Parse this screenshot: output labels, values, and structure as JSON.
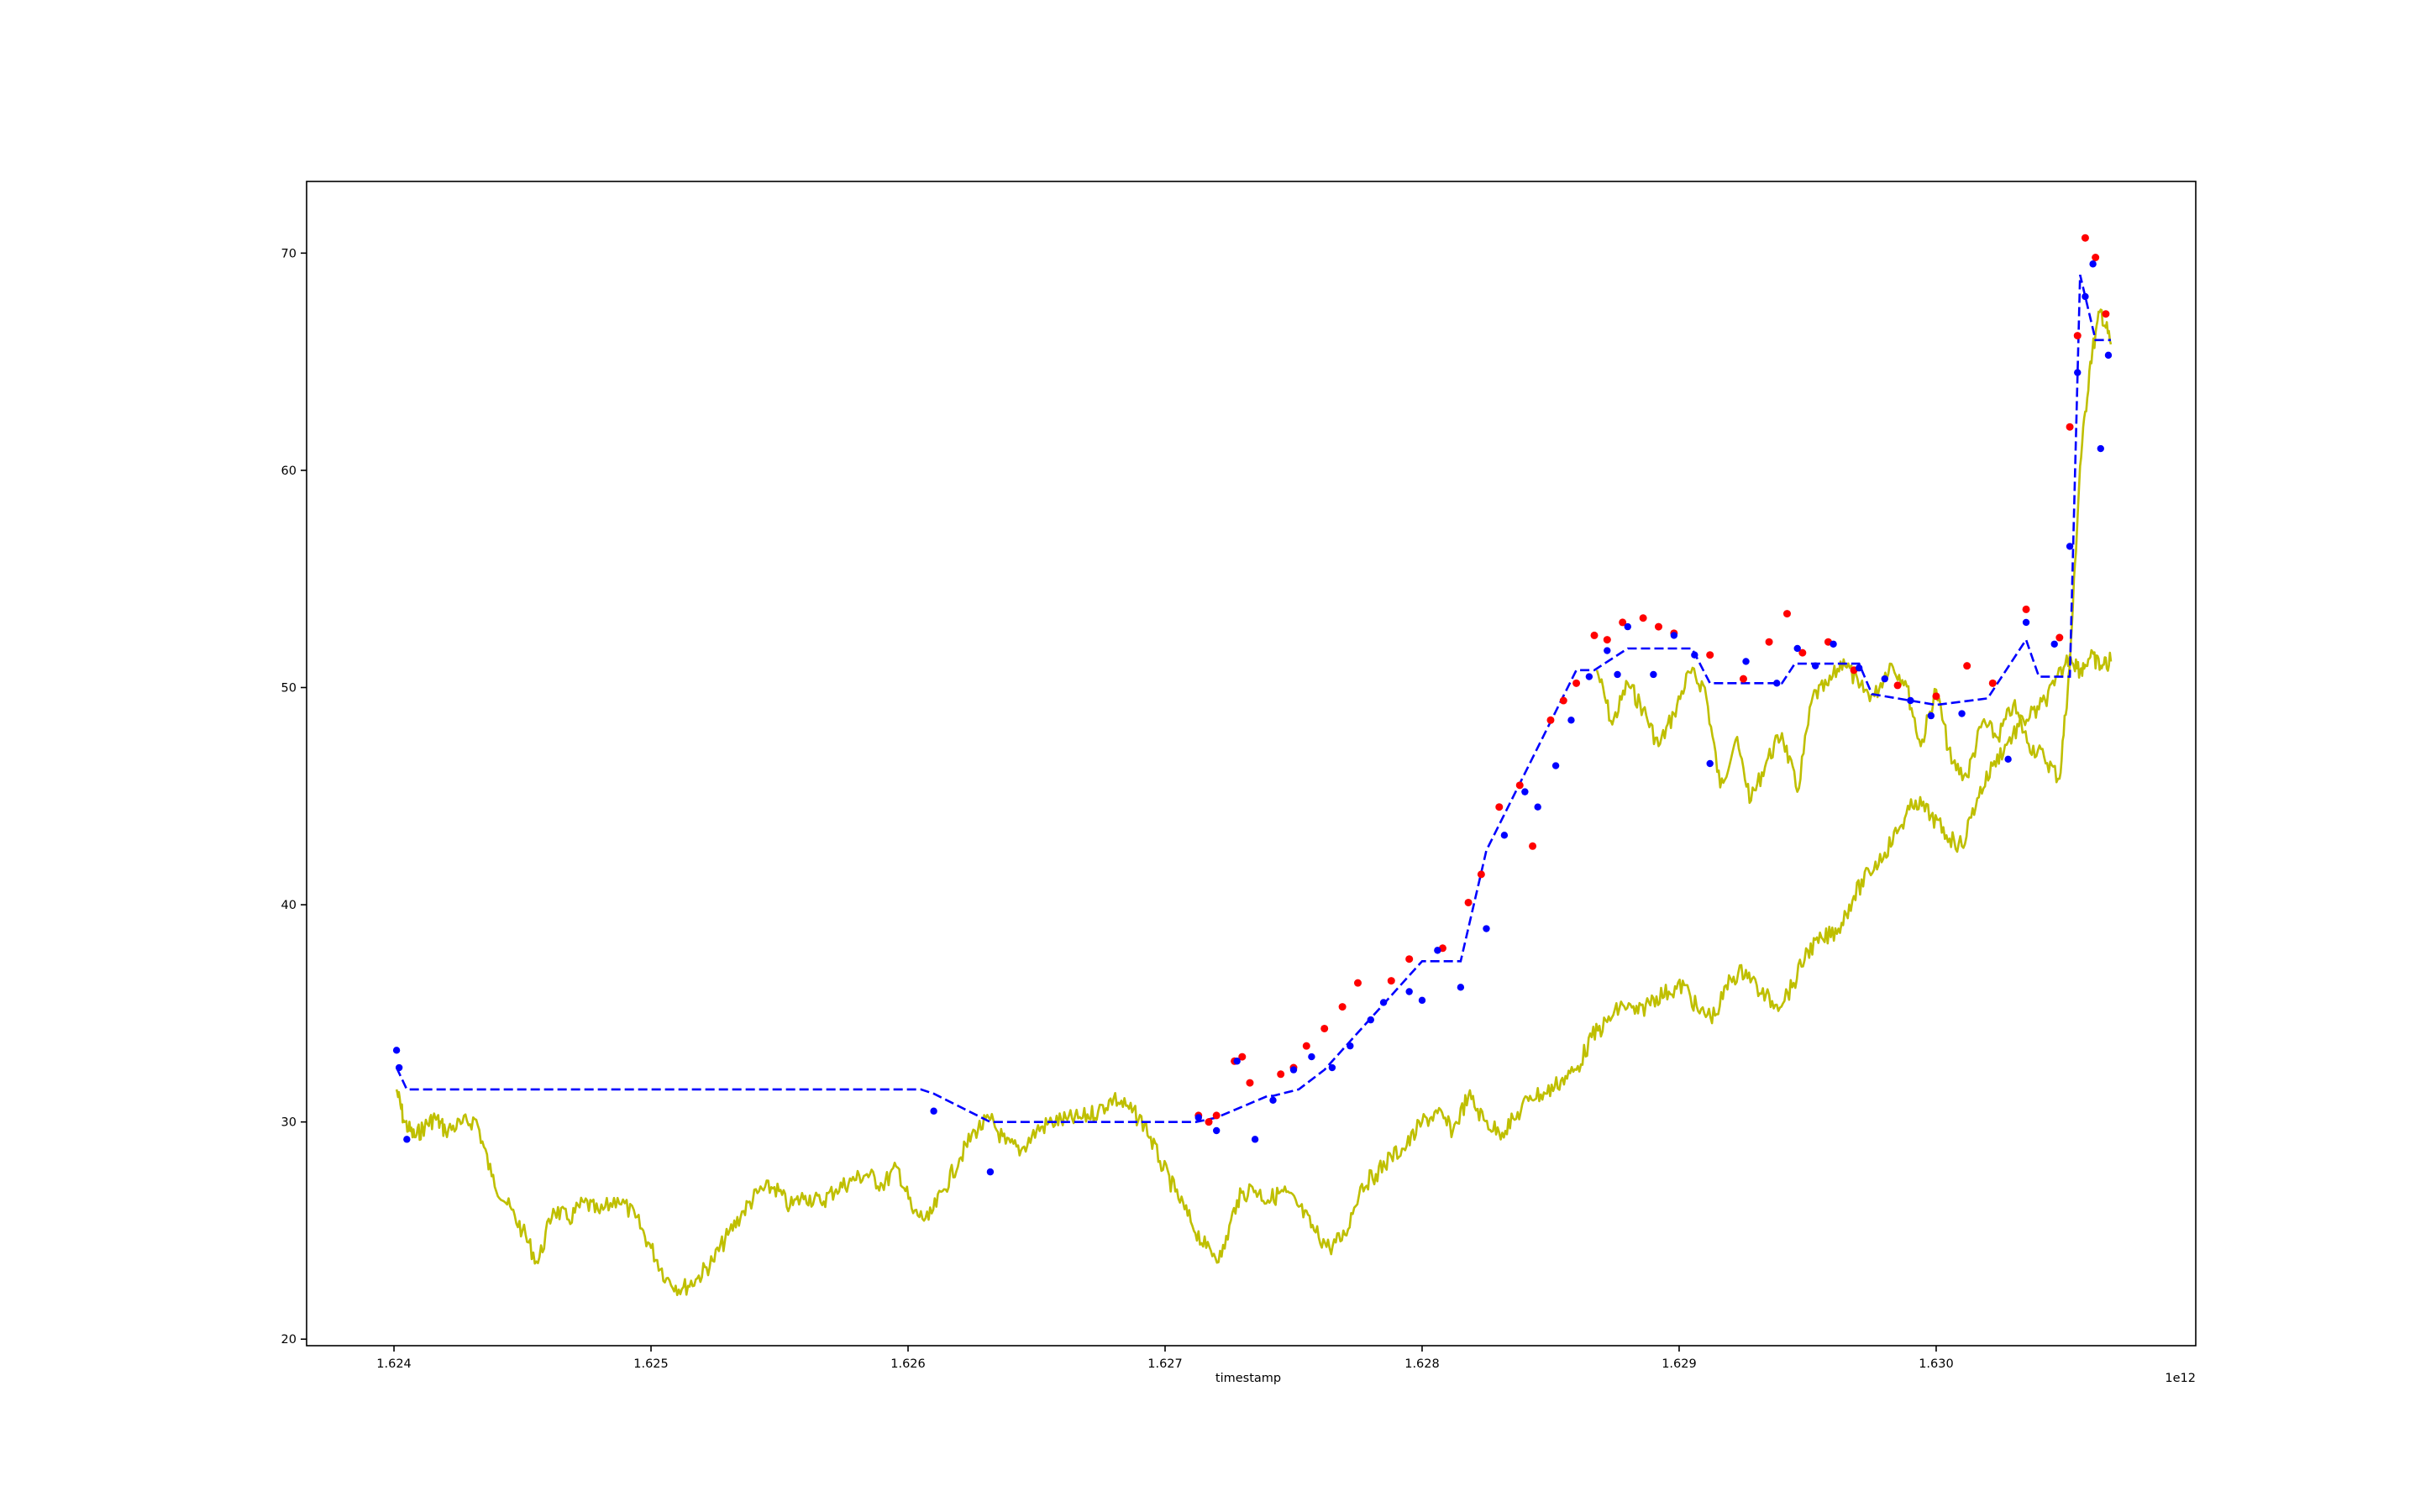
{
  "chart_data": {
    "type": "line",
    "title": "",
    "xlabel": "timestamp",
    "ylabel": "",
    "x_offset_label": "1e12",
    "xlim": [
      1.62366,
      1.63101
    ],
    "ylim": [
      19.7,
      73.3
    ],
    "grid": false,
    "legend": "none",
    "x_ticks": [
      {
        "value": 1.624,
        "label": "1.624"
      },
      {
        "value": 1.625,
        "label": "1.625"
      },
      {
        "value": 1.626,
        "label": "1.626"
      },
      {
        "value": 1.627,
        "label": "1.627"
      },
      {
        "value": 1.628,
        "label": "1.628"
      },
      {
        "value": 1.629,
        "label": "1.629"
      },
      {
        "value": 1.63,
        "label": "1.630"
      }
    ],
    "y_ticks": [
      {
        "value": 20,
        "label": "20"
      },
      {
        "value": 30,
        "label": "30"
      },
      {
        "value": 40,
        "label": "40"
      },
      {
        "value": 50,
        "label": "50"
      },
      {
        "value": 60,
        "label": "60"
      },
      {
        "value": 70,
        "label": "70"
      }
    ],
    "series": [
      {
        "style": "solid-line",
        "color": "#bfbf00",
        "x": [
          1.62401,
          1.62404,
          1.62408,
          1.62412,
          1.62416,
          1.6242,
          1.62426,
          1.62432,
          1.62438,
          1.62444,
          1.6245,
          1.62456,
          1.62462,
          1.62468,
          1.62474,
          1.6248,
          1.62487,
          1.62494,
          1.625,
          1.62506,
          1.62512,
          1.62518,
          1.62524,
          1.6253,
          1.62536,
          1.62542,
          1.62548,
          1.62554,
          1.6256,
          1.62566,
          1.62572,
          1.62578,
          1.62584,
          1.6259,
          1.62596,
          1.62602,
          1.62608,
          1.62614,
          1.6262,
          1.62626,
          1.62632,
          1.62638,
          1.62644,
          1.6265,
          1.62656,
          1.62662,
          1.62668,
          1.62674,
          1.6268,
          1.62686,
          1.62692,
          1.62698,
          1.62704,
          1.6271,
          1.62716,
          1.62722,
          1.62728,
          1.62734,
          1.6274,
          1.62746,
          1.62752,
          1.62758,
          1.62764,
          1.6277,
          1.62776,
          1.62782,
          1.62788,
          1.62794,
          1.628,
          1.62806,
          1.62812,
          1.62818,
          1.62824,
          1.6283,
          1.62836,
          1.62842,
          1.62848,
          1.62854,
          1.6286,
          1.62866,
          1.62872,
          1.62878,
          1.62884,
          1.6289,
          1.62896,
          1.62902,
          1.62908,
          1.62914,
          1.6292,
          1.62926,
          1.62932,
          1.62938,
          1.62944,
          1.6295,
          1.62956,
          1.62962,
          1.62968,
          1.62974,
          1.6298,
          1.62986,
          1.62992,
          1.62998,
          1.63004,
          1.6301,
          1.63016,
          1.63022,
          1.63028,
          1.63034,
          1.6304,
          1.63046,
          1.63052,
          1.63056,
          1.6306,
          1.63064,
          1.63068
        ],
        "y": [
          31.5,
          30.0,
          29.3,
          29.8,
          30.2,
          29.6,
          29.9,
          30.1,
          27.5,
          26.2,
          25.0,
          23.5,
          26.0,
          25.5,
          26.3,
          25.8,
          26.5,
          25.6,
          24.2,
          22.8,
          22.3,
          22.8,
          23.6,
          24.8,
          25.9,
          26.8,
          27.0,
          26.1,
          26.6,
          26.3,
          26.9,
          27.3,
          27.6,
          27.1,
          27.9,
          25.8,
          25.5,
          26.9,
          28.3,
          29.6,
          30.1,
          29.0,
          28.7,
          29.6,
          30.0,
          30.1,
          30.2,
          30.5,
          31.1,
          30.6,
          29.9,
          28.2,
          26.8,
          25.4,
          24.2,
          23.8,
          26.4,
          27.0,
          26.4,
          26.8,
          26.1,
          25.0,
          24.2,
          24.8,
          27.0,
          27.6,
          28.4,
          28.9,
          30.0,
          30.4,
          29.6,
          31.2,
          30.1,
          29.5,
          30.1,
          31.2,
          31.3,
          31.9,
          32.4,
          33.9,
          34.6,
          35.4,
          35.0,
          35.7,
          36.0,
          36.3,
          35.0,
          34.9,
          36.6,
          37.0,
          35.9,
          35.4,
          36.2,
          37.9,
          38.4,
          38.9,
          40.4,
          41.5,
          42.4,
          43.6,
          44.8,
          44.1,
          43.2,
          42.7,
          44.9,
          46.4,
          47.5,
          48.5,
          49.0,
          50.1,
          51.5,
          50.8,
          51.4,
          51.0,
          51.2
        ]
      },
      {
        "style": "solid-line-tail",
        "color": "#bfbf00",
        "x": [
          1.62868,
          1.62874,
          1.6288,
          1.62886,
          1.62892,
          1.62898,
          1.62904,
          1.6291,
          1.62916,
          1.62922,
          1.62928,
          1.62934,
          1.6294,
          1.62946,
          1.62952,
          1.62958,
          1.62964,
          1.6297,
          1.62976,
          1.62982,
          1.62988,
          1.62994,
          1.63,
          1.63006,
          1.63012,
          1.63018,
          1.63024,
          1.6303,
          1.63036,
          1.63042,
          1.63048,
          1.63052,
          1.63056,
          1.6306,
          1.63064,
          1.63068
        ],
        "y": [
          50.8,
          48.3,
          50.2,
          49.0,
          47.3,
          48.8,
          50.7,
          50.0,
          45.4,
          47.6,
          44.8,
          46.6,
          47.9,
          45.2,
          49.6,
          50.1,
          51.3,
          50.0,
          49.6,
          51.1,
          50.3,
          47.3,
          49.9,
          46.5,
          45.9,
          48.4,
          47.7,
          49.2,
          47.4,
          46.8,
          45.8,
          51.0,
          60.2,
          65.0,
          67.4,
          65.8
        ]
      },
      {
        "style": "dashed-line",
        "color": "#0000ff",
        "x": [
          1.62401,
          1.62405,
          1.62605,
          1.6261,
          1.62632,
          1.62712,
          1.6272,
          1.6274,
          1.62742,
          1.62752,
          1.62762,
          1.628,
          1.62802,
          1.62815,
          1.62825,
          1.6286,
          1.62867,
          1.6288,
          1.62885,
          1.62905,
          1.62912,
          1.6294,
          1.62945,
          1.6297,
          1.62975,
          1.63,
          1.6302,
          1.63035,
          1.6304,
          1.63052,
          1.63056,
          1.63062,
          1.63064,
          1.63068
        ],
        "y": [
          32.5,
          31.5,
          31.5,
          31.3,
          30.0,
          30.0,
          30.2,
          31.2,
          31.2,
          31.5,
          32.4,
          37.4,
          37.4,
          37.4,
          42.5,
          50.8,
          50.8,
          51.8,
          51.8,
          51.8,
          50.2,
          50.2,
          51.1,
          51.1,
          49.7,
          49.2,
          49.5,
          52.2,
          50.5,
          50.5,
          69.0,
          66.0,
          66.0,
          66.0
        ]
      },
      {
        "style": "red-markers",
        "color": "#ff0000",
        "x": [
          1.62713,
          1.62717,
          1.6272,
          1.62727,
          1.6273,
          1.62733,
          1.62745,
          1.6275,
          1.62755,
          1.62762,
          1.62769,
          1.62775,
          1.62788,
          1.62795,
          1.62808,
          1.62818,
          1.62823,
          1.6283,
          1.62838,
          1.62843,
          1.6285,
          1.62855,
          1.6286,
          1.62867,
          1.62872,
          1.62878,
          1.62886,
          1.62892,
          1.62898,
          1.62912,
          1.62925,
          1.62935,
          1.62942,
          1.62948,
          1.62958,
          1.62968,
          1.62985,
          1.63,
          1.63012,
          1.63022,
          1.63035,
          1.63048,
          1.63052,
          1.63055,
          1.63058,
          1.63062,
          1.63066
        ],
        "y": [
          30.3,
          30.0,
          30.3,
          32.8,
          33.0,
          31.8,
          32.2,
          32.5,
          33.5,
          34.3,
          35.3,
          36.4,
          36.5,
          37.5,
          38.0,
          40.1,
          41.4,
          44.5,
          45.5,
          42.7,
          48.5,
          49.4,
          50.2,
          52.4,
          52.2,
          53.0,
          53.2,
          52.8,
          52.5,
          51.5,
          50.4,
          52.1,
          53.4,
          51.6,
          52.1,
          50.8,
          50.1,
          49.6,
          51.0,
          50.2,
          53.6,
          52.3,
          62.0,
          66.2,
          70.7,
          69.8,
          67.2
        ]
      },
      {
        "style": "blue-markers",
        "color": "#0000ff",
        "x": [
          1.62401,
          1.62402,
          1.62405,
          1.6261,
          1.62632,
          1.62713,
          1.6272,
          1.62728,
          1.62735,
          1.62742,
          1.6275,
          1.62757,
          1.62765,
          1.62772,
          1.6278,
          1.62785,
          1.62795,
          1.628,
          1.62806,
          1.62815,
          1.62825,
          1.62832,
          1.6284,
          1.62845,
          1.62852,
          1.62858,
          1.62865,
          1.62872,
          1.62876,
          1.6288,
          1.6289,
          1.62898,
          1.62906,
          1.62912,
          1.62926,
          1.62938,
          1.62946,
          1.62953,
          1.6296,
          1.6297,
          1.6298,
          1.6299,
          1.62998,
          1.6301,
          1.63028,
          1.63035,
          1.63046,
          1.63052,
          1.63055,
          1.63058,
          1.63061,
          1.63064,
          1.63067
        ],
        "y": [
          33.3,
          32.5,
          29.2,
          30.5,
          27.7,
          30.2,
          29.6,
          32.8,
          29.2,
          31.0,
          32.4,
          33.0,
          32.5,
          33.5,
          34.7,
          35.5,
          36.0,
          35.6,
          37.9,
          36.2,
          38.9,
          43.2,
          45.2,
          44.5,
          46.4,
          48.5,
          50.5,
          51.7,
          50.6,
          52.8,
          50.6,
          52.4,
          51.5,
          46.5,
          51.2,
          50.2,
          51.8,
          51.0,
          52.0,
          50.9,
          50.4,
          49.4,
          48.7,
          48.8,
          46.7,
          53.0,
          52.0,
          56.5,
          64.5,
          68.0,
          69.5,
          61.0,
          65.3
        ]
      }
    ]
  }
}
